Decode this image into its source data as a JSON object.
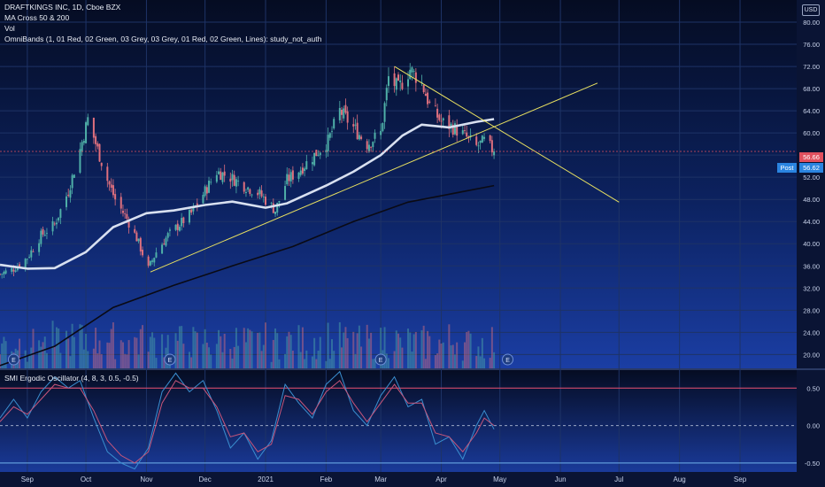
{
  "header": {
    "symbol_line": "DRAFTKINGS INC, 1D, Cboe BZX",
    "ma_line": "MA Cross 50 & 200",
    "vol_line": "Vol",
    "bands_line": "OmniBands (1, 01 Red, 02 Green, 03 Grey, 03 Grey, 01 Red, 02 Green, Lines): study_not_auth",
    "currency": "USD"
  },
  "oscillator": {
    "title": "SMI Ergodic Oscillator (4, 8, 3, 0.5, -0.5)"
  },
  "badges": {
    "last_price": "56.66",
    "post_label": "Post",
    "post_price": "56.62"
  },
  "event_marker": "E",
  "colors": {
    "background_top": "#061029",
    "background_bottom": "#1a3a9a",
    "up": "#4fb0a8",
    "down": "#e0707e",
    "ma50": "#d8e0f0",
    "ma200": "#0a0a14",
    "trendline": "#e8e060",
    "osc_line_1": "#3a8fd0",
    "osc_line_2": "#c7567a",
    "osc_upper": "#d24a6a",
    "last_badge": "#e0505e",
    "post_badge": "#2a84e0"
  },
  "chart_data": [
    {
      "type": "candlestick",
      "symbol": "DRAFTKINGS INC",
      "interval": "1D",
      "exchange": "Cboe BZX",
      "x_ticks": [
        "Sep",
        "Oct",
        "Nov",
        "Dec",
        "2021",
        "Feb",
        "Mar",
        "Apr",
        "May",
        "Jun",
        "Jul",
        "Aug",
        "Sep"
      ],
      "x_range": [
        "2020-08-18",
        "2021-09-30"
      ],
      "y_ticks": [
        "20.00",
        "24.00",
        "28.00",
        "32.00",
        "36.00",
        "40.00",
        "44.00",
        "48.00",
        "52.00",
        "56.00",
        "60.00",
        "64.00",
        "68.00",
        "72.00",
        "76.00",
        "80.00"
      ],
      "ylim": [
        17.5,
        84.0
      ],
      "close_points": [
        [
          "2020-08-18",
          34.5
        ],
        [
          "2020-08-25",
          35.5
        ],
        [
          "2020-09-01",
          37.5
        ],
        [
          "2020-09-08",
          41.5
        ],
        [
          "2020-09-15",
          43.5
        ],
        [
          "2020-09-22",
          49.5
        ],
        [
          "2020-09-28",
          57.0
        ],
        [
          "2020-10-02",
          62.5
        ],
        [
          "2020-10-07",
          57.0
        ],
        [
          "2020-10-12",
          51.5
        ],
        [
          "2020-10-16",
          48.0
        ],
        [
          "2020-10-22",
          44.5
        ],
        [
          "2020-10-27",
          41.0
        ],
        [
          "2020-11-02",
          35.5
        ],
        [
          "2020-11-06",
          38.5
        ],
        [
          "2020-11-12",
          41.5
        ],
        [
          "2020-11-18",
          43.5
        ],
        [
          "2020-11-24",
          45.5
        ],
        [
          "2020-12-01",
          49.5
        ],
        [
          "2020-12-07",
          53.0
        ],
        [
          "2020-12-14",
          52.0
        ],
        [
          "2020-12-21",
          50.5
        ],
        [
          "2020-12-29",
          49.0
        ],
        [
          "2021-01-06",
          46.0
        ],
        [
          "2021-01-12",
          51.5
        ],
        [
          "2021-01-19",
          53.5
        ],
        [
          "2021-01-26",
          56.0
        ],
        [
          "2021-02-02",
          58.5
        ],
        [
          "2021-02-08",
          64.0
        ],
        [
          "2021-02-15",
          61.0
        ],
        [
          "2021-02-22",
          58.0
        ],
        [
          "2021-03-01",
          60.0
        ],
        [
          "2021-03-05",
          70.0
        ],
        [
          "2021-03-10",
          68.0
        ],
        [
          "2021-03-16",
          71.5
        ],
        [
          "2021-03-22",
          69.0
        ],
        [
          "2021-03-26",
          65.0
        ],
        [
          "2021-04-01",
          62.0
        ],
        [
          "2021-04-07",
          61.0
        ],
        [
          "2021-04-13",
          59.5
        ],
        [
          "2021-04-19",
          57.5
        ],
        [
          "2021-04-23",
          58.5
        ],
        [
          "2021-04-28",
          56.66
        ]
      ],
      "ma50_points": [
        [
          "2020-08-18",
          36.2
        ],
        [
          "2020-09-01",
          35.5
        ],
        [
          "2020-09-15",
          35.6
        ],
        [
          "2020-10-01",
          38.5
        ],
        [
          "2020-10-15",
          43.0
        ],
        [
          "2020-11-01",
          45.5
        ],
        [
          "2020-11-15",
          46.0
        ],
        [
          "2020-12-01",
          47.0
        ],
        [
          "2020-12-15",
          47.6
        ],
        [
          "2021-01-01",
          46.5
        ],
        [
          "2021-01-12",
          47.3
        ],
        [
          "2021-02-01",
          50.5
        ],
        [
          "2021-02-15",
          53.0
        ],
        [
          "2021-03-01",
          56.0
        ],
        [
          "2021-03-12",
          59.5
        ],
        [
          "2021-03-22",
          61.5
        ],
        [
          "2021-04-05",
          61.0
        ],
        [
          "2021-04-19",
          62.0
        ],
        [
          "2021-04-28",
          62.5
        ]
      ],
      "ma200_points": [
        [
          "2020-08-18",
          18.0
        ],
        [
          "2020-09-15",
          21.5
        ],
        [
          "2020-10-15",
          28.5
        ],
        [
          "2020-11-15",
          32.5
        ],
        [
          "2020-12-15",
          36.0
        ],
        [
          "2021-01-15",
          39.5
        ],
        [
          "2021-02-15",
          44.0
        ],
        [
          "2021-03-15",
          47.5
        ],
        [
          "2021-04-28",
          50.5
        ]
      ],
      "trendlines": [
        {
          "points": [
            [
              "2020-11-03",
              34.9
            ],
            [
              "2021-06-20",
              69.0
            ]
          ]
        },
        {
          "points": [
            [
              "2021-03-08",
              72.0
            ],
            [
              "2021-07-01",
              47.5
            ]
          ]
        }
      ],
      "earnings_marker_dates": [
        "2020-08-25",
        "2020-11-13",
        "2021-03-01",
        "2021-05-05"
      ],
      "last_price": 56.66,
      "post_price": 56.62
    },
    {
      "type": "line",
      "title": "SMI Ergodic Oscillator (4, 8, 3, 0.5, -0.5)",
      "y_ticks": [
        "0.50",
        "0.00",
        "-0.50"
      ],
      "ylim": [
        -0.62,
        0.74
      ],
      "upper_band": 0.5,
      "zero_line": 0.0,
      "lower_band": -0.5,
      "series": [
        {
          "values": [
            [
              "2020-08-18",
              0.1
            ],
            [
              "2020-08-25",
              0.35
            ],
            [
              "2020-09-01",
              0.1
            ],
            [
              "2020-09-08",
              0.45
            ],
            [
              "2020-09-15",
              0.65
            ],
            [
              "2020-09-22",
              0.5
            ],
            [
              "2020-09-28",
              0.6
            ],
            [
              "2020-10-05",
              0.1
            ],
            [
              "2020-10-12",
              -0.35
            ],
            [
              "2020-10-19",
              -0.5
            ],
            [
              "2020-10-26",
              -0.58
            ],
            [
              "2020-11-02",
              -0.3
            ],
            [
              "2020-11-09",
              0.45
            ],
            [
              "2020-11-16",
              0.7
            ],
            [
              "2020-11-23",
              0.45
            ],
            [
              "2020-11-30",
              0.6
            ],
            [
              "2020-12-07",
              0.2
            ],
            [
              "2020-12-14",
              -0.3
            ],
            [
              "2020-12-21",
              -0.1
            ],
            [
              "2020-12-28",
              -0.45
            ],
            [
              "2021-01-04",
              -0.2
            ],
            [
              "2021-01-11",
              0.55
            ],
            [
              "2021-01-18",
              0.3
            ],
            [
              "2021-01-25",
              0.1
            ],
            [
              "2021-02-01",
              0.55
            ],
            [
              "2021-02-08",
              0.72
            ],
            [
              "2021-02-15",
              0.2
            ],
            [
              "2021-02-22",
              0.0
            ],
            [
              "2021-03-01",
              0.4
            ],
            [
              "2021-03-08",
              0.65
            ],
            [
              "2021-03-15",
              0.25
            ],
            [
              "2021-03-22",
              0.35
            ],
            [
              "2021-03-29",
              -0.25
            ],
            [
              "2021-04-05",
              -0.15
            ],
            [
              "2021-04-12",
              -0.45
            ],
            [
              "2021-04-19",
              0.0
            ],
            [
              "2021-04-23",
              0.2
            ],
            [
              "2021-04-28",
              -0.05
            ]
          ]
        },
        {
          "values": [
            [
              "2020-08-18",
              0.05
            ],
            [
              "2020-08-25",
              0.25
            ],
            [
              "2020-09-01",
              0.15
            ],
            [
              "2020-09-08",
              0.35
            ],
            [
              "2020-09-15",
              0.55
            ],
            [
              "2020-09-22",
              0.5
            ],
            [
              "2020-09-28",
              0.5
            ],
            [
              "2020-10-05",
              0.2
            ],
            [
              "2020-10-12",
              -0.2
            ],
            [
              "2020-10-19",
              -0.4
            ],
            [
              "2020-10-26",
              -0.5
            ],
            [
              "2020-11-02",
              -0.35
            ],
            [
              "2020-11-09",
              0.3
            ],
            [
              "2020-11-16",
              0.6
            ],
            [
              "2020-11-23",
              0.5
            ],
            [
              "2020-11-30",
              0.5
            ],
            [
              "2020-12-07",
              0.25
            ],
            [
              "2020-12-14",
              -0.15
            ],
            [
              "2020-12-21",
              -0.1
            ],
            [
              "2020-12-28",
              -0.35
            ],
            [
              "2021-01-04",
              -0.25
            ],
            [
              "2021-01-11",
              0.4
            ],
            [
              "2021-01-18",
              0.35
            ],
            [
              "2021-01-25",
              0.15
            ],
            [
              "2021-02-01",
              0.45
            ],
            [
              "2021-02-08",
              0.6
            ],
            [
              "2021-02-15",
              0.3
            ],
            [
              "2021-02-22",
              0.05
            ],
            [
              "2021-03-01",
              0.3
            ],
            [
              "2021-03-08",
              0.55
            ],
            [
              "2021-03-15",
              0.3
            ],
            [
              "2021-03-22",
              0.3
            ],
            [
              "2021-03-29",
              -0.1
            ],
            [
              "2021-04-05",
              -0.15
            ],
            [
              "2021-04-12",
              -0.35
            ],
            [
              "2021-04-19",
              -0.1
            ],
            [
              "2021-04-23",
              0.1
            ],
            [
              "2021-04-28",
              0.0
            ]
          ]
        }
      ]
    }
  ]
}
